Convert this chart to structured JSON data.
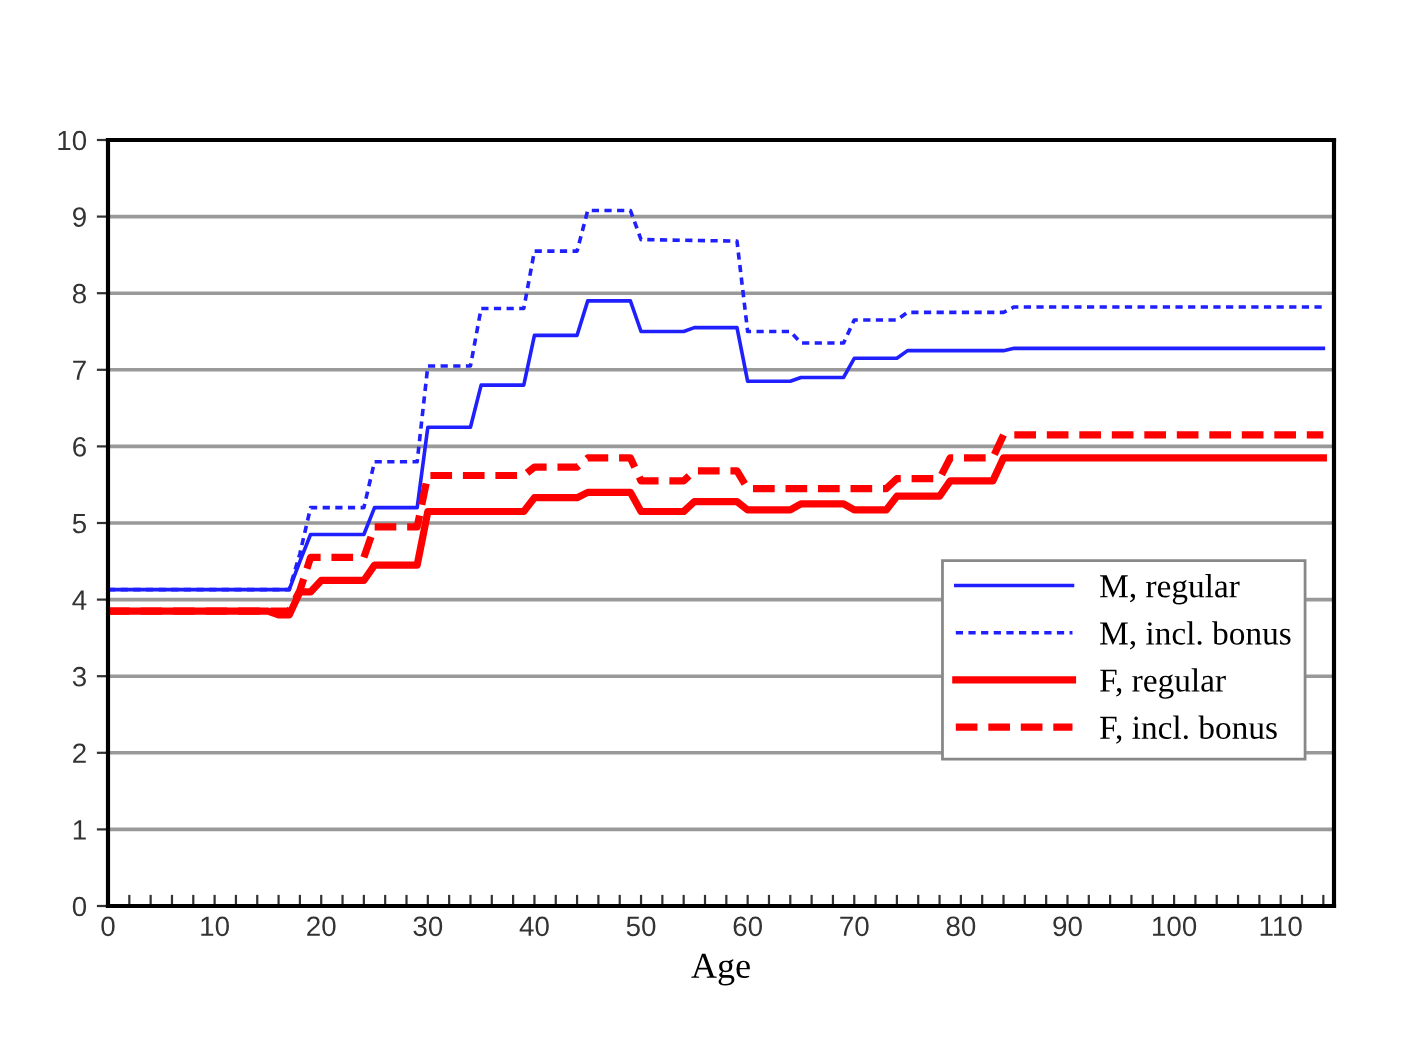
{
  "chart_data": {
    "type": "line",
    "xlabel": "Age",
    "xlim": [
      0,
      115
    ],
    "ylim": [
      0,
      10
    ],
    "yticks": [
      0,
      1,
      2,
      3,
      4,
      5,
      6,
      7,
      8,
      9,
      10
    ],
    "xticks": [
      0,
      {
        "value": 2,
        "label": null
      },
      {
        "value": 4,
        "label": null
      },
      {
        "value": 6,
        "label": null
      },
      {
        "value": 8,
        "label": null
      },
      10,
      {
        "value": 12,
        "label": null
      },
      {
        "value": 14,
        "label": null
      },
      {
        "value": 16,
        "label": null
      },
      {
        "value": 18,
        "label": null
      },
      20,
      {
        "value": 22,
        "label": null
      },
      {
        "value": 24,
        "label": null
      },
      {
        "value": 26,
        "label": null
      },
      {
        "value": 28,
        "label": null
      },
      30,
      {
        "value": 32,
        "label": null
      },
      {
        "value": 34,
        "label": null
      },
      {
        "value": 36,
        "label": null
      },
      {
        "value": 38,
        "label": null
      },
      40,
      {
        "value": 42,
        "label": null
      },
      {
        "value": 44,
        "label": null
      },
      {
        "value": 46,
        "label": null
      },
      {
        "value": 48,
        "label": null
      },
      50,
      {
        "value": 52,
        "label": null
      },
      {
        "value": 54,
        "label": null
      },
      {
        "value": 56,
        "label": null
      },
      {
        "value": 58,
        "label": null
      },
      60,
      {
        "value": 62,
        "label": null
      },
      {
        "value": 64,
        "label": null
      },
      {
        "value": 66,
        "label": null
      },
      {
        "value": 68,
        "label": null
      },
      70,
      {
        "value": 72,
        "label": null
      },
      {
        "value": 74,
        "label": null
      },
      {
        "value": 76,
        "label": null
      },
      {
        "value": 78,
        "label": null
      },
      80,
      {
        "value": 82,
        "label": null
      },
      {
        "value": 84,
        "label": null
      },
      {
        "value": 86,
        "label": null
      },
      {
        "value": 88,
        "label": null
      },
      90,
      {
        "value": 92,
        "label": null
      },
      {
        "value": 94,
        "label": null
      },
      {
        "value": 96,
        "label": null
      },
      {
        "value": 98,
        "label": null
      },
      100,
      {
        "value": 102,
        "label": null
      },
      {
        "value": 104,
        "label": null
      },
      {
        "value": 106,
        "label": null
      },
      {
        "value": 108,
        "label": null
      },
      110,
      {
        "value": 112,
        "label": null
      },
      {
        "value": 114,
        "label": null
      }
    ],
    "grid": "y",
    "legend": "bottom right",
    "marker": "none",
    "series": [
      {
        "name": "M, regular",
        "color": "#2020ff",
        "line_style": "solid",
        "x": [
          0,
          17,
          18,
          19,
          24,
          25,
          29,
          30,
          34,
          35,
          39,
          40,
          44,
          45,
          49,
          50,
          54,
          55,
          59,
          60,
          64,
          65,
          69,
          70,
          74,
          75,
          84,
          85,
          114
        ],
        "values": [
          4.13,
          4.13,
          4.5,
          4.85,
          4.85,
          5.2,
          5.2,
          6.25,
          6.25,
          6.8,
          6.8,
          7.45,
          7.45,
          7.9,
          7.9,
          7.5,
          7.5,
          7.55,
          7.55,
          6.85,
          6.85,
          6.9,
          6.9,
          7.15,
          7.15,
          7.25,
          7.25,
          7.28,
          7.28
        ]
      },
      {
        "name": "M, incl. bonus",
        "color": "#2020ff",
        "line_style": "dotted",
        "x": [
          0,
          17,
          18,
          19,
          24,
          25,
          29,
          30,
          34,
          35,
          39,
          40,
          44,
          45,
          49,
          50,
          59,
          60,
          64,
          65,
          69,
          70,
          74,
          75,
          84,
          85,
          114
        ],
        "values": [
          4.13,
          4.13,
          4.6,
          5.2,
          5.2,
          5.8,
          5.8,
          7.05,
          7.05,
          7.8,
          7.8,
          8.55,
          8.55,
          9.08,
          9.08,
          8.7,
          8.68,
          7.5,
          7.5,
          7.35,
          7.35,
          7.65,
          7.65,
          7.75,
          7.75,
          7.82,
          7.82
        ]
      },
      {
        "name": "F, regular",
        "color": "#ff0000",
        "line_style": "solid",
        "x": [
          0,
          15,
          16,
          17,
          18,
          19,
          20,
          24,
          25,
          29,
          30,
          39,
          40,
          44,
          45,
          49,
          50,
          54,
          55,
          59,
          60,
          64,
          65,
          69,
          70,
          73,
          74,
          78,
          79,
          83,
          84,
          114
        ],
        "values": [
          3.85,
          3.85,
          3.8,
          3.8,
          4.1,
          4.1,
          4.25,
          4.25,
          4.45,
          4.45,
          5.15,
          5.15,
          5.33,
          5.33,
          5.4,
          5.4,
          5.15,
          5.15,
          5.28,
          5.28,
          5.17,
          5.17,
          5.25,
          5.25,
          5.17,
          5.17,
          5.35,
          5.35,
          5.55,
          5.55,
          5.85,
          5.85
        ]
      },
      {
        "name": "F, incl. bonus",
        "color": "#ff0000",
        "line_style": "dashed",
        "x": [
          0,
          17,
          18,
          19,
          24,
          25,
          29,
          30,
          39,
          40,
          44,
          45,
          49,
          50,
          54,
          55,
          59,
          60,
          69,
          70,
          73,
          74,
          78,
          79,
          83,
          84,
          114
        ],
        "values": [
          3.85,
          3.85,
          4.12,
          4.55,
          4.55,
          4.95,
          4.95,
          5.62,
          5.62,
          5.73,
          5.73,
          5.85,
          5.85,
          5.55,
          5.55,
          5.68,
          5.68,
          5.45,
          5.45,
          5.45,
          5.45,
          5.58,
          5.58,
          5.85,
          5.85,
          6.15,
          6.15
        ]
      }
    ]
  }
}
